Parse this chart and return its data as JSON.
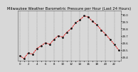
{
  "title": "Milwaukee Weather Barometric Pressure per Hour (Last 24 Hours)",
  "hours": [
    0,
    1,
    2,
    3,
    4,
    5,
    6,
    7,
    8,
    9,
    10,
    11,
    12,
    13,
    14,
    15,
    16,
    17,
    18,
    19,
    20,
    21,
    22,
    23
  ],
  "pressure": [
    29.42,
    29.38,
    29.46,
    29.44,
    29.52,
    29.56,
    29.6,
    29.58,
    29.65,
    29.7,
    29.68,
    29.75,
    29.8,
    29.88,
    29.92,
    29.98,
    29.96,
    29.9,
    29.85,
    29.78,
    29.72,
    29.65,
    29.58,
    29.5
  ],
  "ylim_min": 29.35,
  "ylim_max": 30.05,
  "ytick_labels": [
    "29.4",
    "29.5",
    "29.6",
    "29.7",
    "29.8",
    "29.9",
    "30.0"
  ],
  "ytick_vals": [
    29.4,
    29.5,
    29.6,
    29.7,
    29.8,
    29.9,
    30.0
  ],
  "line_color": "#dd0000",
  "marker_color": "#111111",
  "bg_color": "#d8d8d8",
  "plot_bg": "#d8d8d8",
  "grid_color": "#888888",
  "title_color": "#000000",
  "title_fontsize": 3.8,
  "tick_fontsize": 2.8,
  "xtick_every": 2
}
